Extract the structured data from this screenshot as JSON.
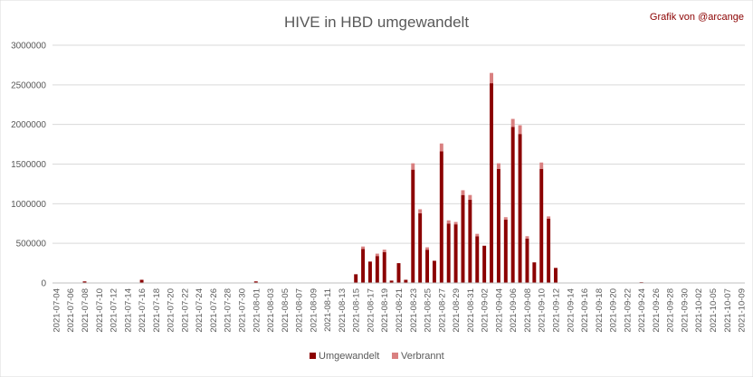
{
  "chart_data": {
    "type": "bar",
    "stacked": true,
    "title": "HIVE in HBD umgewandelt",
    "credit": "Grafik von @arcange",
    "xlabel": "",
    "ylabel": "",
    "ylim": [
      0,
      3000000
    ],
    "yticks": [
      0,
      500000,
      1000000,
      1500000,
      2000000,
      2500000,
      3000000
    ],
    "grid": true,
    "legend_position": "bottom",
    "categories": [
      "2021-07-04",
      "2021-07-05",
      "2021-07-06",
      "2021-07-07",
      "2021-07-08",
      "2021-07-09",
      "2021-07-10",
      "2021-07-11",
      "2021-07-12",
      "2021-07-13",
      "2021-07-14",
      "2021-07-15",
      "2021-07-16",
      "2021-07-17",
      "2021-07-18",
      "2021-07-19",
      "2021-07-20",
      "2021-07-21",
      "2021-07-22",
      "2021-07-23",
      "2021-07-24",
      "2021-07-25",
      "2021-07-26",
      "2021-07-27",
      "2021-07-28",
      "2021-07-29",
      "2021-07-30",
      "2021-07-31",
      "2021-08-01",
      "2021-08-02",
      "2021-08-03",
      "2021-08-04",
      "2021-08-05",
      "2021-08-06",
      "2021-08-07",
      "2021-08-08",
      "2021-08-09",
      "2021-08-10",
      "2021-08-11",
      "2021-08-12",
      "2021-08-13",
      "2021-08-14",
      "2021-08-15",
      "2021-08-16",
      "2021-08-17",
      "2021-08-18",
      "2021-08-19",
      "2021-08-20",
      "2021-08-21",
      "2021-08-22",
      "2021-08-23",
      "2021-08-24",
      "2021-08-25",
      "2021-08-26",
      "2021-08-27",
      "2021-08-28",
      "2021-08-29",
      "2021-08-30",
      "2021-08-31",
      "2021-09-01",
      "2021-09-02",
      "2021-09-03",
      "2021-09-04",
      "2021-09-05",
      "2021-09-06",
      "2021-09-07",
      "2021-09-08",
      "2021-09-09",
      "2021-09-10",
      "2021-09-11",
      "2021-09-12",
      "2021-09-13",
      "2021-09-14",
      "2021-09-15",
      "2021-09-16",
      "2021-09-17",
      "2021-09-18",
      "2021-09-19",
      "2021-09-20",
      "2021-09-21",
      "2021-09-22",
      "2021-09-23",
      "2021-09-24",
      "2021-09-25",
      "2021-09-26",
      "2021-09-27",
      "2021-09-28",
      "2021-09-29",
      "2021-09-30",
      "2021-10-01",
      "2021-10-02",
      "2021-10-03",
      "2021-10-05",
      "2021-10-06",
      "2021-10-07",
      "2021-10-08",
      "2021-10-09"
    ],
    "tick_labels": [
      "2021-07-04",
      "2021-07-06",
      "2021-07-08",
      "2021-07-10",
      "2021-07-12",
      "2021-07-14",
      "2021-07-16",
      "2021-07-18",
      "2021-07-20",
      "2021-07-22",
      "2021-07-24",
      "2021-07-26",
      "2021-07-28",
      "2021-07-30",
      "2021-08-01",
      "2021-08-03",
      "2021-08-05",
      "2021-08-07",
      "2021-08-09",
      "2021-08-11",
      "2021-08-13",
      "2021-08-15",
      "2021-08-17",
      "2021-08-19",
      "2021-08-21",
      "2021-08-23",
      "2021-08-25",
      "2021-08-27",
      "2021-08-29",
      "2021-08-31",
      "2021-09-02",
      "2021-09-04",
      "2021-09-06",
      "2021-09-08",
      "2021-09-10",
      "2021-09-12",
      "2021-09-14",
      "2021-09-16",
      "2021-09-18",
      "2021-09-20",
      "2021-09-22",
      "2021-09-24",
      "2021-09-26",
      "2021-09-28",
      "2021-09-30",
      "2021-10-02",
      "2021-10-05",
      "2021-10-07",
      "2021-10-09"
    ],
    "series": [
      {
        "name": "Umgewandelt",
        "color": "#8b0000",
        "values": [
          0,
          0,
          0,
          0,
          20000,
          0,
          0,
          0,
          0,
          0,
          0,
          0,
          40000,
          0,
          0,
          0,
          0,
          0,
          0,
          0,
          0,
          0,
          0,
          0,
          0,
          0,
          0,
          0,
          20000,
          0,
          0,
          0,
          0,
          0,
          0,
          0,
          0,
          0,
          0,
          0,
          0,
          0,
          110000,
          430000,
          270000,
          340000,
          390000,
          30000,
          250000,
          40000,
          1430000,
          880000,
          420000,
          280000,
          1660000,
          750000,
          740000,
          1110000,
          1050000,
          590000,
          470000,
          2520000,
          1440000,
          800000,
          1970000,
          1880000,
          560000,
          260000,
          1440000,
          810000,
          190000,
          0,
          0,
          0,
          0,
          0,
          0,
          0,
          0,
          0,
          0,
          0,
          10000,
          0,
          0,
          0,
          0,
          0,
          0,
          0,
          0,
          0,
          0,
          0,
          0,
          0,
          0
        ]
      },
      {
        "name": "Verbrannt",
        "color": "#d98080",
        "values": [
          0,
          0,
          0,
          0,
          0,
          0,
          0,
          0,
          0,
          0,
          0,
          0,
          0,
          0,
          0,
          0,
          0,
          0,
          0,
          0,
          0,
          0,
          0,
          0,
          0,
          0,
          0,
          0,
          0,
          0,
          0,
          0,
          0,
          0,
          0,
          0,
          0,
          0,
          0,
          0,
          0,
          0,
          0,
          30000,
          0,
          30000,
          30000,
          0,
          0,
          0,
          80000,
          50000,
          30000,
          0,
          100000,
          40000,
          30000,
          60000,
          60000,
          30000,
          0,
          130000,
          70000,
          30000,
          100000,
          110000,
          30000,
          0,
          80000,
          30000,
          0,
          0,
          0,
          0,
          0,
          0,
          0,
          0,
          0,
          0,
          0,
          0,
          0,
          0,
          0,
          0,
          0,
          0,
          0,
          0,
          0,
          0,
          0,
          0,
          0,
          0,
          0
        ]
      }
    ]
  }
}
